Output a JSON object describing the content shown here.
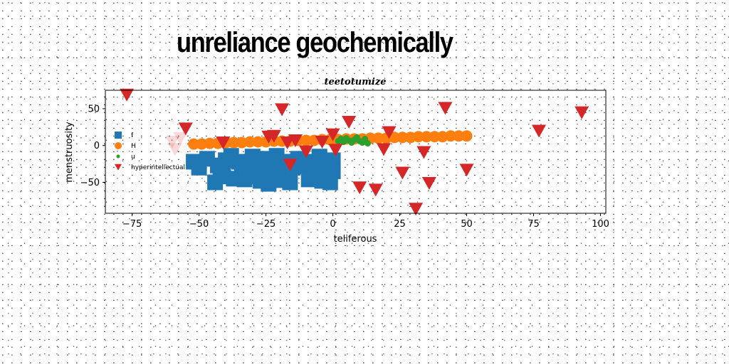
{
  "page": {
    "title": "unreliance geochemically"
  },
  "chart_data": {
    "type": "scatter",
    "title": "teetotumize",
    "xlabel": "teliferous",
    "ylabel": "menstruosity",
    "xlim": [
      -85,
      102
    ],
    "ylim": [
      -92,
      75
    ],
    "xticks": [
      -75,
      -50,
      -25,
      0,
      25,
      50,
      75,
      100
    ],
    "yticks": [
      -50,
      0,
      50
    ],
    "xtick_labels": [
      "−75",
      "−50",
      "−25",
      "0",
      "25",
      "50",
      "75",
      "100"
    ],
    "ytick_labels": [
      "−50",
      "0",
      "50"
    ],
    "grid": false,
    "legend_position": "center-left",
    "series": [
      {
        "name": "f",
        "marker": "square",
        "color": "#1f77b4",
        "points": [
          [
            -52,
            -22
          ],
          [
            -50,
            -30
          ],
          [
            -47,
            -18
          ],
          [
            -43,
            -27
          ],
          [
            -42,
            -42
          ],
          [
            -41,
            -33
          ],
          [
            -40,
            -20
          ],
          [
            -38,
            -14
          ],
          [
            -35,
            -22
          ],
          [
            -34,
            -38
          ],
          [
            -33,
            -46
          ],
          [
            -31,
            -28
          ],
          [
            -30,
            -15
          ],
          [
            -29,
            -20
          ],
          [
            -27,
            -48
          ],
          [
            -26,
            -33
          ],
          [
            -25,
            -18
          ],
          [
            -23,
            -40
          ],
          [
            -22,
            -26
          ],
          [
            -21,
            -14
          ],
          [
            -20,
            -36
          ],
          [
            -19,
            -47
          ],
          [
            -18,
            -22
          ],
          [
            -16,
            -50
          ],
          [
            -13,
            -18
          ],
          [
            -10,
            -28
          ],
          [
            -8,
            -22
          ],
          [
            -7,
            -42
          ],
          [
            -6,
            -30
          ],
          [
            -5,
            -15
          ],
          [
            -4,
            -48
          ],
          [
            -3,
            -25
          ],
          [
            -2,
            -40
          ],
          [
            -1,
            -50
          ],
          [
            0,
            -20
          ],
          [
            0,
            -35
          ],
          [
            -44,
            -50
          ],
          [
            -37,
            -45
          ],
          [
            -28,
            -42
          ],
          [
            -24,
            -52
          ],
          [
            -15,
            -30
          ],
          [
            -12,
            -24
          ],
          [
            -9,
            -46
          ]
        ]
      },
      {
        "name": "H",
        "marker": "circle",
        "color": "#ff7f0e",
        "points": [
          [
            -52,
            2
          ],
          [
            -49,
            2
          ],
          [
            -46,
            3
          ],
          [
            -43,
            3
          ],
          [
            -40,
            4
          ],
          [
            -37,
            4
          ],
          [
            -34,
            4
          ],
          [
            -31,
            5
          ],
          [
            -28,
            5
          ],
          [
            -25,
            5
          ],
          [
            -22,
            6
          ],
          [
            -19,
            6
          ],
          [
            -16,
            6
          ],
          [
            -13,
            7
          ],
          [
            -10,
            7
          ],
          [
            -7,
            7
          ],
          [
            -4,
            8
          ],
          [
            -1,
            8
          ],
          [
            2,
            8
          ],
          [
            5,
            9
          ],
          [
            8,
            9
          ],
          [
            11,
            9
          ],
          [
            14,
            10
          ],
          [
            17,
            10
          ],
          [
            20,
            10
          ],
          [
            23,
            11
          ],
          [
            26,
            11
          ],
          [
            29,
            11
          ],
          [
            32,
            12
          ],
          [
            35,
            12
          ],
          [
            38,
            12
          ],
          [
            41,
            12
          ],
          [
            44,
            13
          ],
          [
            47,
            13
          ],
          [
            50,
            13
          ]
        ]
      },
      {
        "name": "u",
        "marker": "circle",
        "color": "#2ca02c",
        "points": [
          [
            2,
            6
          ],
          [
            3,
            9
          ],
          [
            4,
            5
          ],
          [
            5,
            10
          ],
          [
            6,
            7
          ],
          [
            7,
            4
          ],
          [
            8,
            8
          ],
          [
            9,
            11
          ],
          [
            10,
            6
          ],
          [
            11,
            4
          ],
          [
            12,
            9
          ],
          [
            13,
            3
          ]
        ]
      },
      {
        "name": "hyperintellectual",
        "marker": "triangle-down",
        "color": "#d62728",
        "points": [
          [
            -77,
            69
          ],
          [
            -55,
            23
          ],
          [
            -41,
            4
          ],
          [
            -24,
            12
          ],
          [
            -22,
            13
          ],
          [
            -19,
            49
          ],
          [
            -17,
            4
          ],
          [
            -16,
            -26
          ],
          [
            -14,
            7
          ],
          [
            -10,
            -8
          ],
          [
            -4,
            5
          ],
          [
            0,
            15
          ],
          [
            1,
            -6
          ],
          [
            6,
            32
          ],
          [
            10,
            -57
          ],
          [
            16,
            -60
          ],
          [
            19,
            -5
          ],
          [
            21,
            18
          ],
          [
            26,
            -37
          ],
          [
            31,
            -86
          ],
          [
            34,
            -9
          ],
          [
            36,
            -51
          ],
          [
            42,
            51
          ],
          [
            50,
            -33
          ],
          [
            77,
            20
          ],
          [
            93,
            45
          ],
          [
            -60,
            5
          ],
          [
            -57,
            10
          ],
          [
            -59,
            -5
          ]
        ],
        "faded_points": [
          [
            -60,
            5
          ],
          [
            -57,
            10
          ],
          [
            -59,
            -5
          ]
        ]
      }
    ]
  }
}
